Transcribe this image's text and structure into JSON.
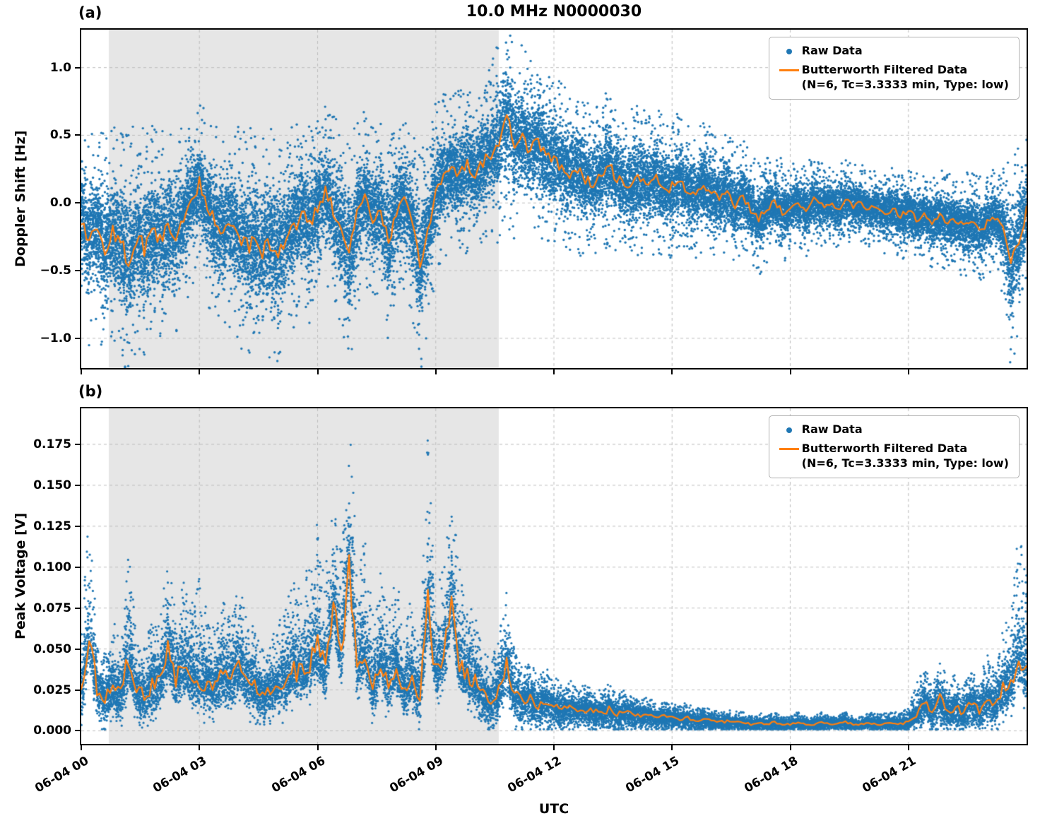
{
  "figure": {
    "title": "10.0 MHz N0000030",
    "xlabel": "UTC",
    "colors": {
      "raw": "#1f77b4",
      "filtered": "#ff7f0e",
      "shade": "#e6e6e6",
      "grid": "#bdbdbd"
    }
  },
  "legend": {
    "raw": "Raw Data",
    "filtered_1": "Butterworth Filtered Data",
    "filtered_2": "(N=6, Tc=3.3333 min, Type: low)"
  },
  "chart_data": [
    {
      "type": "scatter",
      "panel_label": "(a)",
      "ylabel": "Doppler Shift [Hz]",
      "xlim": [
        0,
        24
      ],
      "ylim": [
        -1.22,
        1.28
      ],
      "xticks": {
        "values": [
          0,
          3,
          6,
          9,
          12,
          15,
          18,
          21
        ],
        "labels": [
          "06-04 00",
          "06-04 03",
          "06-04 06",
          "06-04 09",
          "06-04 12",
          "06-04 15",
          "06-04 18",
          "06-04 21"
        ]
      },
      "yticks": {
        "values": [
          -1.0,
          -0.5,
          0.0,
          0.5,
          1.0
        ],
        "labels": [
          "−1.0",
          "−0.5",
          "0.0",
          "0.5",
          "1.0"
        ]
      },
      "shaded_region": [
        0.7,
        10.6
      ],
      "t_step": 0.2,
      "series": {
        "filtered": [
          -0.12,
          -0.28,
          -0.18,
          -0.35,
          -0.22,
          -0.3,
          -0.42,
          -0.25,
          -0.33,
          -0.22,
          -0.28,
          -0.18,
          -0.25,
          -0.12,
          0.02,
          0.15,
          -0.05,
          -0.12,
          -0.2,
          -0.15,
          -0.25,
          -0.32,
          -0.28,
          -0.35,
          -0.3,
          -0.38,
          -0.25,
          -0.18,
          -0.08,
          -0.15,
          -0.02,
          0.08,
          -0.05,
          -0.18,
          -0.4,
          -0.08,
          0.05,
          -0.1,
          -0.05,
          -0.3,
          -0.05,
          0.0,
          -0.12,
          -0.5,
          -0.2,
          0.1,
          0.18,
          0.25,
          0.2,
          0.28,
          0.22,
          0.3,
          0.35,
          0.45,
          0.65,
          0.45,
          0.5,
          0.38,
          0.45,
          0.35,
          0.3,
          0.28,
          0.22,
          0.25,
          0.18,
          0.15,
          0.2,
          0.28,
          0.18,
          0.12,
          0.15,
          0.18,
          0.12,
          0.18,
          0.1,
          0.12,
          0.15,
          0.1,
          0.05,
          0.12,
          0.08,
          0.02,
          0.08,
          -0.02,
          0.05,
          -0.05,
          -0.12,
          -0.05,
          0.02,
          -0.08,
          -0.02,
          0.0,
          -0.05,
          0.02,
          -0.02,
          0.0,
          -0.05,
          0.02,
          -0.02,
          0.0,
          -0.05,
          -0.02,
          -0.08,
          -0.04,
          -0.1,
          -0.06,
          -0.12,
          -0.08,
          -0.15,
          -0.1,
          -0.15,
          -0.12,
          -0.18,
          -0.12,
          -0.2,
          -0.15,
          -0.1,
          -0.2,
          -0.45,
          -0.3,
          -0.05
        ],
        "raw_spread": [
          0.3,
          0.32,
          0.3,
          0.34,
          0.32,
          0.35,
          0.38,
          0.34,
          0.36,
          0.32,
          0.32,
          0.3,
          0.3,
          0.28,
          0.26,
          0.25,
          0.28,
          0.3,
          0.32,
          0.3,
          0.33,
          0.35,
          0.34,
          0.36,
          0.34,
          0.36,
          0.32,
          0.3,
          0.28,
          0.3,
          0.28,
          0.26,
          0.28,
          0.3,
          0.34,
          0.28,
          0.26,
          0.28,
          0.26,
          0.32,
          0.28,
          0.26,
          0.28,
          0.34,
          0.3,
          0.26,
          0.25,
          0.24,
          0.25,
          0.26,
          0.25,
          0.26,
          0.28,
          0.3,
          0.32,
          0.3,
          0.28,
          0.27,
          0.28,
          0.26,
          0.26,
          0.25,
          0.24,
          0.25,
          0.24,
          0.23,
          0.24,
          0.25,
          0.23,
          0.22,
          0.22,
          0.23,
          0.22,
          0.22,
          0.21,
          0.21,
          0.22,
          0.2,
          0.19,
          0.2,
          0.19,
          0.18,
          0.19,
          0.17,
          0.18,
          0.16,
          0.17,
          0.16,
          0.15,
          0.16,
          0.14,
          0.13,
          0.14,
          0.13,
          0.13,
          0.12,
          0.13,
          0.12,
          0.12,
          0.12,
          0.12,
          0.12,
          0.13,
          0.12,
          0.13,
          0.13,
          0.14,
          0.13,
          0.14,
          0.14,
          0.15,
          0.14,
          0.16,
          0.15,
          0.16,
          0.15,
          0.16,
          0.2,
          0.34,
          0.3,
          0.22
        ]
      },
      "render": {
        "seed": 12345,
        "points_per_step": 220,
        "tail_frac": 0.05,
        "dot_radius": 1.7,
        "wiggle_frac": 0.18
      }
    },
    {
      "type": "scatter",
      "panel_label": "(b)",
      "ylabel": "Peak Voltage [V]",
      "xlim": [
        0,
        24
      ],
      "ylim": [
        -0.008,
        0.197
      ],
      "xticks": {
        "values": [
          0,
          3,
          6,
          9,
          12,
          15,
          18,
          21
        ],
        "labels": [
          "06-04 00",
          "06-04 03",
          "06-04 06",
          "06-04 09",
          "06-04 12",
          "06-04 15",
          "06-04 18",
          "06-04 21"
        ]
      },
      "yticks": {
        "values": [
          0.0,
          0.025,
          0.05,
          0.075,
          0.1,
          0.125,
          0.15,
          0.175
        ],
        "labels": [
          "0.000",
          "0.025",
          "0.050",
          "0.075",
          "0.100",
          "0.125",
          "0.150",
          "0.175"
        ]
      },
      "shaded_region": [
        0.7,
        10.6
      ],
      "t_step": 0.2,
      "series": {
        "filtered": [
          0.022,
          0.06,
          0.025,
          0.02,
          0.028,
          0.022,
          0.045,
          0.025,
          0.022,
          0.028,
          0.03,
          0.048,
          0.032,
          0.04,
          0.035,
          0.032,
          0.03,
          0.028,
          0.035,
          0.03,
          0.04,
          0.032,
          0.028,
          0.022,
          0.025,
          0.028,
          0.032,
          0.038,
          0.035,
          0.042,
          0.05,
          0.035,
          0.078,
          0.045,
          0.105,
          0.04,
          0.05,
          0.025,
          0.045,
          0.03,
          0.042,
          0.025,
          0.035,
          0.02,
          0.078,
          0.035,
          0.045,
          0.08,
          0.04,
          0.035,
          0.03,
          0.022,
          0.018,
          0.025,
          0.04,
          0.022,
          0.018,
          0.02,
          0.015,
          0.018,
          0.015,
          0.013,
          0.014,
          0.012,
          0.013,
          0.012,
          0.011,
          0.013,
          0.01,
          0.012,
          0.01,
          0.009,
          0.01,
          0.008,
          0.009,
          0.008,
          0.007,
          0.008,
          0.006,
          0.007,
          0.006,
          0.005,
          0.006,
          0.005,
          0.005,
          0.004,
          0.005,
          0.004,
          0.005,
          0.004,
          0.004,
          0.005,
          0.004,
          0.004,
          0.005,
          0.004,
          0.004,
          0.005,
          0.004,
          0.004,
          0.005,
          0.004,
          0.004,
          0.005,
          0.004,
          0.005,
          0.01,
          0.018,
          0.012,
          0.02,
          0.012,
          0.015,
          0.01,
          0.018,
          0.012,
          0.02,
          0.015,
          0.025,
          0.03,
          0.048,
          0.035
        ],
        "raw_spread_up": [
          0.018,
          0.035,
          0.015,
          0.012,
          0.018,
          0.014,
          0.028,
          0.015,
          0.013,
          0.018,
          0.018,
          0.025,
          0.018,
          0.022,
          0.018,
          0.028,
          0.018,
          0.015,
          0.02,
          0.016,
          0.022,
          0.018,
          0.015,
          0.012,
          0.014,
          0.016,
          0.02,
          0.025,
          0.022,
          0.028,
          0.035,
          0.028,
          0.026,
          0.028,
          0.039,
          0.028,
          0.03,
          0.02,
          0.026,
          0.018,
          0.024,
          0.015,
          0.022,
          0.012,
          0.046,
          0.022,
          0.024,
          0.034,
          0.026,
          0.02,
          0.018,
          0.013,
          0.011,
          0.016,
          0.02,
          0.012,
          0.009,
          0.011,
          0.008,
          0.009,
          0.008,
          0.007,
          0.008,
          0.006,
          0.007,
          0.006,
          0.006,
          0.007,
          0.005,
          0.006,
          0.005,
          0.004,
          0.005,
          0.004,
          0.004,
          0.004,
          0.004,
          0.004,
          0.003,
          0.004,
          0.003,
          0.003,
          0.003,
          0.003,
          0.003,
          0.002,
          0.003,
          0.002,
          0.003,
          0.002,
          0.002,
          0.003,
          0.002,
          0.002,
          0.003,
          0.002,
          0.002,
          0.003,
          0.002,
          0.002,
          0.003,
          0.003,
          0.003,
          0.003,
          0.003,
          0.004,
          0.008,
          0.01,
          0.007,
          0.012,
          0.007,
          0.009,
          0.007,
          0.01,
          0.008,
          0.012,
          0.01,
          0.016,
          0.02,
          0.033,
          0.028
        ]
      },
      "render": {
        "seed": 7777,
        "points_per_step": 170,
        "tail_frac": 0.05,
        "dot_radius": 1.6,
        "wiggle_frac": 0.3,
        "sd_frac": 0.5,
        "sd_max": 0.01,
        "clip_min": 0.001
      }
    }
  ]
}
